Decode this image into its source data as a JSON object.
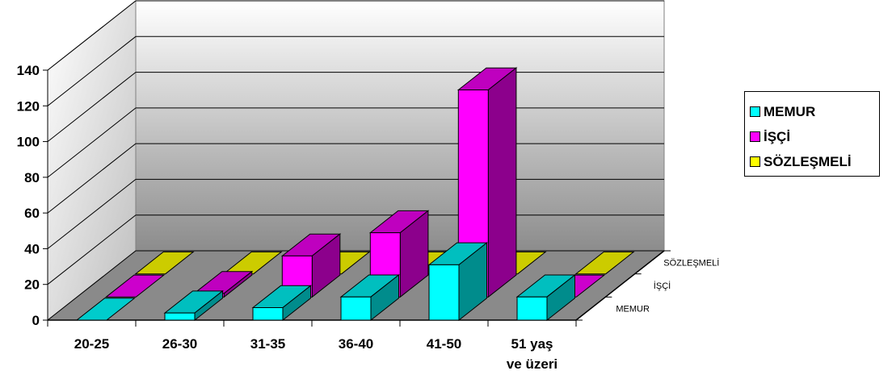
{
  "chart_data": {
    "type": "bar",
    "subtype": "3d-clustered-depth",
    "title": "",
    "xlabel": "",
    "ylabel": "",
    "categories": [
      "20-25",
      "26-30",
      "31-35",
      "36-40",
      "41-50",
      "51 yaş ve üzeri"
    ],
    "series": [
      {
        "name": "MEMUR",
        "values": [
          0,
          4,
          7,
          13,
          31,
          13
        ],
        "color": "#00FFFF"
      },
      {
        "name": "İŞÇİ",
        "values": [
          0,
          2,
          23,
          36,
          116,
          0
        ],
        "color": "#FF00FF"
      },
      {
        "name": "SÖZLEŞMELİ",
        "values": [
          0,
          0,
          0,
          0,
          0,
          0
        ],
        "color": "#FFFF00"
      }
    ],
    "depth_labels": [
      "MEMUR",
      "İŞÇİ",
      "SÖZLEŞMELİ"
    ],
    "y_ticks": [
      "0",
      "20",
      "40",
      "60",
      "80",
      "100",
      "120",
      "140"
    ],
    "ylim": [
      0,
      140
    ],
    "grid": true,
    "legend_position": "right"
  },
  "legend": {
    "items": [
      {
        "label": "MEMUR",
        "color": "#00FFFF"
      },
      {
        "label": "İŞÇİ",
        "color": "#FF00FF"
      },
      {
        "label": "SÖZLEŞMELİ",
        "color": "#FFFF00"
      }
    ]
  }
}
